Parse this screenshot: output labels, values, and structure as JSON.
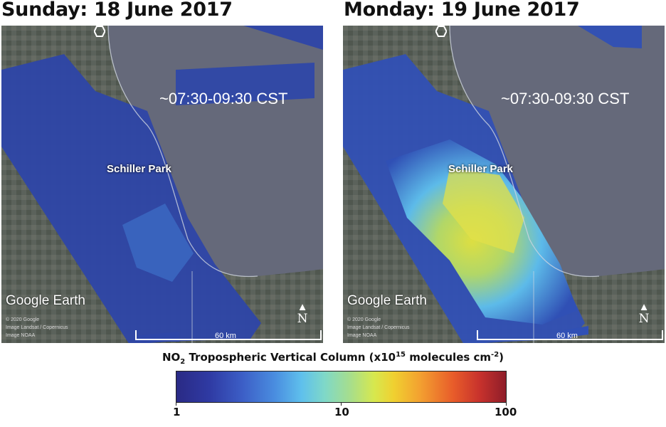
{
  "panels": [
    {
      "title": "Sunday: 18 June 2017",
      "time": "~07:30-09:30 CST",
      "site": "Schiller Park",
      "logo": "Google Earth",
      "credit_1": "© 2020 Google",
      "credit_2": "Image Landsat / Copernicus",
      "credit_3": "Image NOAA",
      "scale": "60 km",
      "north": "N",
      "north_icon": "north-arrow-icon",
      "overlay_level": "low"
    },
    {
      "title": "Monday: 19 June 2017",
      "time": "~07:30-09:30 CST",
      "site": "Schiller Park",
      "logo": "Google Earth",
      "credit_1": "© 2020 Google",
      "credit_2": "Image Landsat / Copernicus",
      "credit_3": "Image NOAA",
      "scale": "60 km",
      "north": "N",
      "north_icon": "north-arrow-icon",
      "overlay_level": "high"
    }
  ],
  "colorbar": {
    "title_prefix": "NO",
    "title_sub": "2",
    "title_mid": " Tropospheric Vertical Column (x10",
    "title_sup1": "15",
    "title_mid2": " molecules cm",
    "title_sup2": "-2",
    "title_end": ")",
    "ticks": [
      "1",
      "10",
      "100"
    ],
    "scale": "log",
    "colors": [
      "#2a2a85",
      "#3c5ec6",
      "#5fc0ec",
      "#d7e84e",
      "#f3a030",
      "#c8322c",
      "#8e1d2a"
    ]
  }
}
